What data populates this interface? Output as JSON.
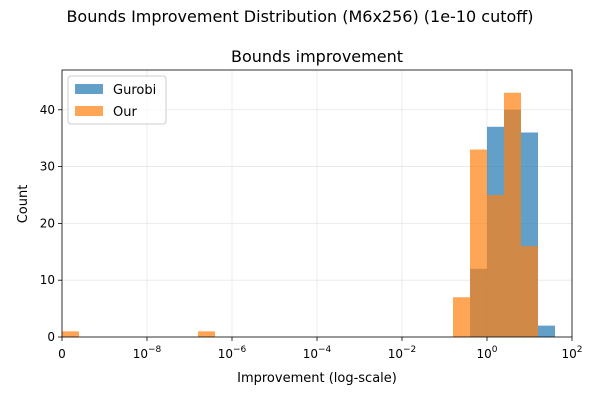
{
  "figure": {
    "suptitle": "Bounds Improvement Distribution (M6x256) (1e-10 cutoff)"
  },
  "chart_data": {
    "type": "bar",
    "title": "Bounds improvement",
    "xlabel": "Improvement (log-scale)",
    "ylabel": "Count",
    "xscale": "log",
    "xlim_exponent": [
      -10,
      2
    ],
    "ylim": [
      0,
      47
    ],
    "x_ticks": [
      {
        "exp": -10,
        "base": "0",
        "sup": ""
      },
      {
        "exp": -8,
        "base": "10",
        "sup": "−8"
      },
      {
        "exp": -6,
        "base": "10",
        "sup": "−6"
      },
      {
        "exp": -4,
        "base": "10",
        "sup": "−4"
      },
      {
        "exp": -2,
        "base": "10",
        "sup": "−2"
      },
      {
        "exp": 0,
        "base": "10",
        "sup": "0"
      },
      {
        "exp": 2,
        "base": "10",
        "sup": "2"
      }
    ],
    "y_ticks": [
      0,
      10,
      20,
      30,
      40
    ],
    "grid": true,
    "legend_position": "top-left",
    "bin_width_exponent": 0.4,
    "series": [
      {
        "name": "Gurobi",
        "color": "#1f77b4",
        "opacity": 0.7,
        "bins": [
          {
            "start_exp": -0.4,
            "count": 12
          },
          {
            "start_exp": 0.0,
            "count": 37
          },
          {
            "start_exp": 0.4,
            "count": 40
          },
          {
            "start_exp": 0.8,
            "count": 36
          },
          {
            "start_exp": 1.2,
            "count": 2
          }
        ]
      },
      {
        "name": "Our",
        "color": "#ff7f0e",
        "opacity": 0.7,
        "bins": [
          {
            "start_exp": -10.0,
            "count": 1
          },
          {
            "start_exp": -6.8,
            "count": 1
          },
          {
            "start_exp": -0.8,
            "count": 7
          },
          {
            "start_exp": -0.4,
            "count": 33
          },
          {
            "start_exp": 0.0,
            "count": 25
          },
          {
            "start_exp": 0.4,
            "count": 43
          },
          {
            "start_exp": 0.8,
            "count": 16
          }
        ]
      }
    ]
  }
}
